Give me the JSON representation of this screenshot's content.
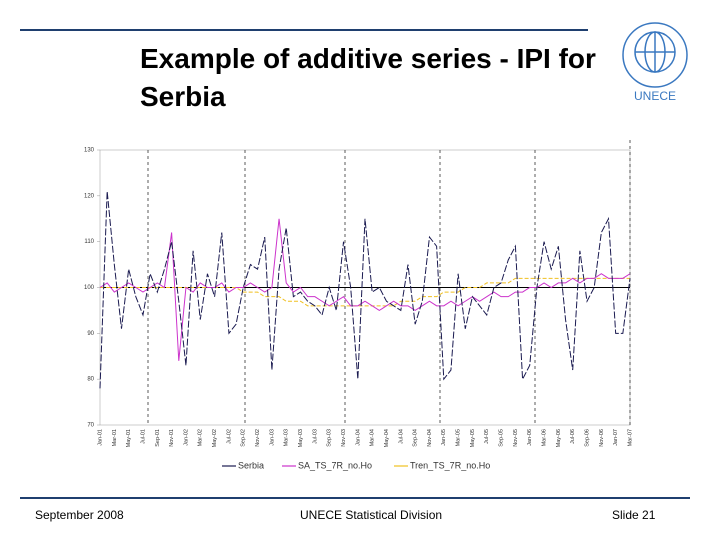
{
  "header": {
    "title": "Example of additive series - IPI for Serbia",
    "logo_text": "UNECE"
  },
  "chart_data": {
    "type": "line",
    "categories": [
      "Jan-01",
      null,
      "Mar-01",
      null,
      "May-01",
      null,
      "Jul-01",
      null,
      "Sep-01",
      null,
      "Nov-01",
      null,
      "Jan-02",
      null,
      "Mar-02",
      null,
      "May-02",
      null,
      "Jul-02",
      null,
      "Sep-02",
      null,
      "Nov-02",
      null,
      "Jan-03",
      null,
      "Mar-03",
      null,
      "May-03",
      null,
      "Jul-03",
      null,
      "Sep-03",
      null,
      "Nov-03",
      null,
      "Jan-04",
      null,
      "Mar-04",
      null,
      "May-04",
      null,
      "Jul-04",
      null,
      "Sep-04",
      null,
      "Nov-04",
      null,
      "Jan-05",
      null,
      "Mar-05",
      null,
      "May-05",
      null,
      "Jul-05",
      null,
      "Sep-05",
      null,
      "Nov-05",
      null,
      "Jan-06",
      null,
      "Mar-06",
      null,
      "May-06",
      null,
      "Jul-06",
      null,
      "Sep-06",
      null,
      "Nov-06",
      null,
      "Jan-07",
      null,
      "Mar-07"
    ],
    "series": [
      {
        "name": "Serbia",
        "color": "#1a1a50",
        "values": [
          78,
          121,
          105,
          91,
          104,
          98,
          94,
          103,
          99,
          104,
          110,
          97,
          83,
          108,
          93,
          103,
          98,
          112,
          90,
          92,
          100,
          105,
          104,
          111,
          82,
          104,
          113,
          98,
          99,
          97,
          96,
          94,
          100,
          95,
          110,
          100,
          80,
          115,
          99,
          100,
          97,
          96,
          95,
          105,
          92,
          97,
          111,
          109,
          80,
          82,
          103,
          91,
          98,
          96,
          94,
          100,
          101,
          106,
          109,
          80,
          83,
          100,
          110,
          104,
          109,
          93,
          82,
          108,
          97,
          100,
          112,
          115,
          90,
          90,
          102
        ]
      },
      {
        "name": "SA_TS_7R_no.Ho",
        "color": "#cc33cc",
        "values": [
          100,
          101,
          99,
          100,
          101,
          100,
          99,
          100,
          101,
          100,
          112,
          84,
          100,
          99,
          101,
          100,
          100,
          101,
          99,
          100,
          100,
          101,
          100,
          99,
          100,
          115,
          101,
          99,
          100,
          98,
          98,
          97,
          96,
          97,
          98,
          96,
          96,
          97,
          96,
          95,
          96,
          97,
          96,
          96,
          95,
          96,
          97,
          96,
          96,
          97,
          96,
          97,
          98,
          97,
          98,
          99,
          98,
          98,
          99,
          99,
          100,
          100,
          101,
          100,
          101,
          101,
          102,
          101,
          102,
          102,
          103,
          102,
          102,
          102,
          103
        ]
      },
      {
        "name": "Tren_TS_7R_no.Ho",
        "color": "#f0c020",
        "values": [
          100,
          100,
          100,
          100,
          100,
          100,
          100,
          100,
          100,
          100,
          100,
          100,
          100,
          100,
          100,
          100,
          100,
          100,
          100,
          100,
          99,
          99,
          99,
          98,
          98,
          98,
          97,
          97,
          97,
          96,
          96,
          96,
          96,
          96,
          96,
          96,
          96,
          96,
          96,
          96,
          96,
          96,
          97,
          97,
          97,
          98,
          98,
          98,
          99,
          99,
          99,
          100,
          100,
          100,
          101,
          101,
          101,
          101,
          102,
          102,
          102,
          102,
          102,
          102,
          102,
          102,
          102,
          102,
          102,
          102,
          102,
          102,
          102,
          102,
          102
        ]
      }
    ],
    "ylim": [
      70,
      130
    ],
    "yticks": [
      70,
      80,
      90,
      100,
      110,
      120,
      130
    ]
  },
  "footer": {
    "left": "September 2008",
    "center": "UNECE Statistical Division",
    "right": "Slide 21"
  }
}
